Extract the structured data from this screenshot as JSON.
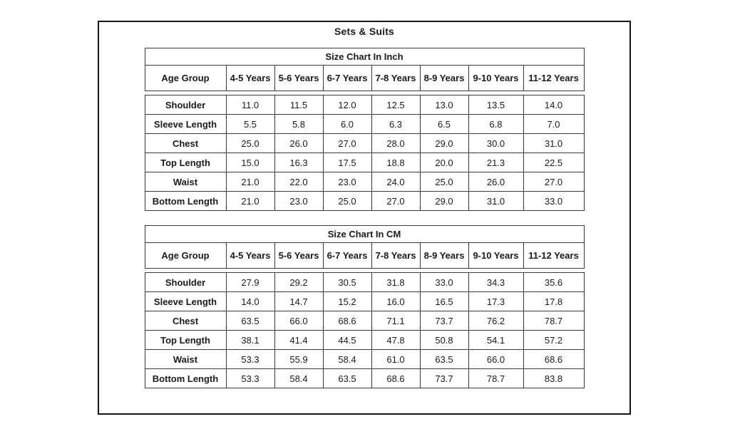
{
  "page": {
    "title": "Sets & Suits"
  },
  "tables": [
    {
      "caption": "Size Chart In Inch",
      "columns": [
        "Age Group",
        "4-5 Years",
        "5-6 Years",
        "6-7 Years",
        "7-8 Years",
        "8-9 Years",
        "9-10 Years",
        "11-12 Years"
      ],
      "rows": [
        {
          "label": "Shoulder",
          "values": [
            "11.0",
            "11.5",
            "12.0",
            "12.5",
            "13.0",
            "13.5",
            "14.0"
          ]
        },
        {
          "label": "Sleeve Length",
          "values": [
            "5.5",
            "5.8",
            "6.0",
            "6.3",
            "6.5",
            "6.8",
            "7.0"
          ]
        },
        {
          "label": "Chest",
          "values": [
            "25.0",
            "26.0",
            "27.0",
            "28.0",
            "29.0",
            "30.0",
            "31.0"
          ]
        },
        {
          "label": "Top Length",
          "values": [
            "15.0",
            "16.3",
            "17.5",
            "18.8",
            "20.0",
            "21.3",
            "22.5"
          ]
        },
        {
          "label": "Waist",
          "values": [
            "21.0",
            "22.0",
            "23.0",
            "24.0",
            "25.0",
            "26.0",
            "27.0"
          ]
        },
        {
          "label": "Bottom Length",
          "values": [
            "21.0",
            "23.0",
            "25.0",
            "27.0",
            "29.0",
            "31.0",
            "33.0"
          ]
        }
      ]
    },
    {
      "caption": "Size Chart In CM",
      "columns": [
        "Age Group",
        "4-5 Years",
        "5-6 Years",
        "6-7 Years",
        "7-8 Years",
        "8-9 Years",
        "9-10 Years",
        "11-12 Years"
      ],
      "rows": [
        {
          "label": "Shoulder",
          "values": [
            "27.9",
            "29.2",
            "30.5",
            "31.8",
            "33.0",
            "34.3",
            "35.6"
          ]
        },
        {
          "label": "Sleeve Length",
          "values": [
            "14.0",
            "14.7",
            "15.2",
            "16.0",
            "16.5",
            "17.3",
            "17.8"
          ]
        },
        {
          "label": "Chest",
          "values": [
            "63.5",
            "66.0",
            "68.6",
            "71.1",
            "73.7",
            "76.2",
            "78.7"
          ]
        },
        {
          "label": "Top Length",
          "values": [
            "38.1",
            "41.4",
            "44.5",
            "47.8",
            "50.8",
            "54.1",
            "57.2"
          ]
        },
        {
          "label": "Waist",
          "values": [
            "53.3",
            "55.9",
            "58.4",
            "61.0",
            "63.5",
            "66.0",
            "68.6"
          ]
        },
        {
          "label": "Bottom Length",
          "values": [
            "53.3",
            "58.4",
            "63.5",
            "68.6",
            "73.7",
            "78.7",
            "83.8"
          ]
        }
      ]
    }
  ],
  "colors": {
    "text": "#1a1a1a",
    "border": "#3a3a3a",
    "frame_border": "#161616",
    "background": "#ffffff"
  }
}
